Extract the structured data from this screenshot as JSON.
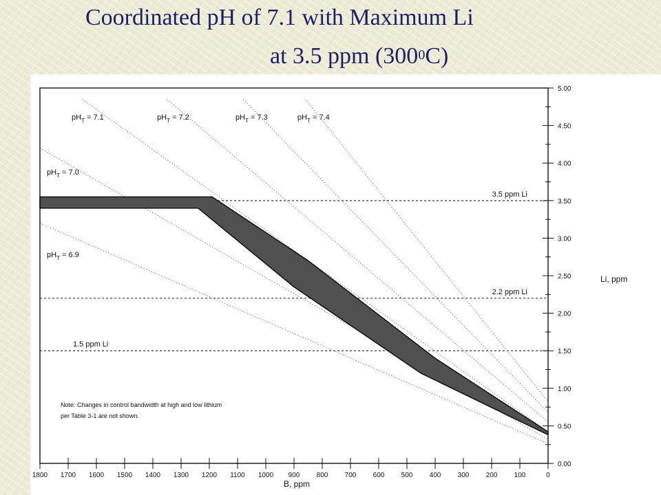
{
  "slide": {
    "title_line1": "Coordinated pH of 7.1 with Maximum Li",
    "title_line2_main": "at 3.5 ppm (300",
    "title_line2_sup": "0",
    "title_line2_end": "C)"
  },
  "chart_data": {
    "type": "line",
    "title": "",
    "xlabel": "B, ppm",
    "ylabel": "Li, ppm",
    "xlim": [
      1800,
      0
    ],
    "ylim": [
      0,
      5
    ],
    "x_reversed": true,
    "x_ticks": [
      "1800",
      "1700",
      "1600",
      "1500",
      "1400",
      "1300",
      "1200",
      "1100",
      "1000",
      "900",
      "800",
      "700",
      "600",
      "500",
      "400",
      "300",
      "200",
      "100",
      "0"
    ],
    "y_ticks": [
      "0.00",
      "0.50",
      "1.00",
      "1.50",
      "2.00",
      "2.50",
      "3.00",
      "3.50",
      "4.00",
      "4.50",
      "5.00"
    ],
    "grid": false,
    "reference_lines": [
      {
        "label": "3.5 ppm Li",
        "y": 3.5
      },
      {
        "label": "2.2 ppm Li",
        "y": 2.2
      },
      {
        "label": "1.5 ppm Li",
        "y": 1.5
      }
    ],
    "ph_lines": [
      {
        "label": "pHT = 6.9",
        "label_main": "pH",
        "label_sub": "T",
        "label_value": " = 6.9",
        "points": [
          [
            1800,
            3.2
          ],
          [
            0,
            0.26
          ]
        ]
      },
      {
        "label": "pHT = 7.0",
        "label_main": "pH",
        "label_sub": "T",
        "label_value": " = 7.0",
        "points": [
          [
            1800,
            4.2
          ],
          [
            0,
            0.32
          ]
        ]
      },
      {
        "label": "pHT = 7.1",
        "label_main": "pH",
        "label_sub": "T",
        "label_value": " = 7.1",
        "points": [
          [
            1650,
            4.85
          ],
          [
            0,
            0.42
          ]
        ]
      },
      {
        "label": "pHT = 7.2",
        "label_main": "pH",
        "label_sub": "T",
        "label_value": " = 7.2",
        "points": [
          [
            1350,
            4.85
          ],
          [
            0,
            0.55
          ]
        ]
      },
      {
        "label": "pHT = 7.3",
        "label_main": "pH",
        "label_sub": "T",
        "label_value": " = 7.3",
        "points": [
          [
            1080,
            4.85
          ],
          [
            0,
            0.68
          ]
        ]
      },
      {
        "label": "pHT = 7.4",
        "label_main": "pH",
        "label_sub": "T",
        "label_value": " = 7.4",
        "points": [
          [
            860,
            4.85
          ],
          [
            0,
            0.82
          ]
        ]
      }
    ],
    "control_band": {
      "upper": [
        [
          1800,
          3.55
        ],
        [
          1190,
          3.55
        ],
        [
          850,
          2.7
        ],
        [
          400,
          1.4
        ],
        [
          0,
          0.42
        ]
      ],
      "lower": [
        [
          1800,
          3.4
        ],
        [
          1240,
          3.4
        ],
        [
          900,
          2.35
        ],
        [
          450,
          1.2
        ],
        [
          0,
          0.38
        ]
      ]
    },
    "annotation": {
      "line1": "Note: Changes in control bandwidth at high and low lithium",
      "line2": "per Table 3-1 are not shown."
    }
  }
}
